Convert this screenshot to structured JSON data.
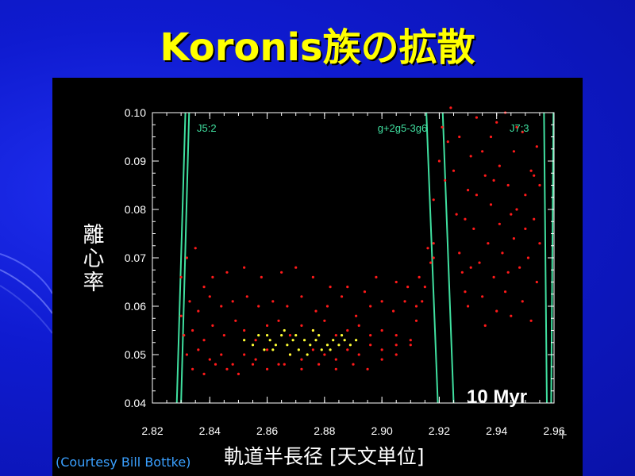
{
  "slide": {
    "title": "Koronis族の拡散",
    "credit": "(Courtesy Bill Bottke)",
    "corner_mark": "+"
  },
  "chart_data": {
    "type": "scatter",
    "title": "",
    "xlabel": "軌道半長径 [天文単位]",
    "ylabel": "離心率",
    "ylabel_chars": [
      "離",
      "心",
      "率"
    ],
    "xlim": [
      2.82,
      2.96
    ],
    "ylim": [
      0.04,
      0.1
    ],
    "x_ticks": [
      2.82,
      2.84,
      2.86,
      2.88,
      2.9,
      2.92,
      2.94,
      2.96
    ],
    "x_tick_labels": [
      "2.82",
      "2.84",
      "2.86",
      "2.88",
      "2.90",
      "2.92",
      "2.94",
      "2.96"
    ],
    "y_ticks": [
      0.04,
      0.05,
      0.06,
      0.07,
      0.08,
      0.09,
      0.1
    ],
    "y_tick_labels": [
      "0.04",
      "0.05",
      "0.06",
      "0.07",
      "0.08",
      "0.09",
      "0.10"
    ],
    "grid": false,
    "annotation": "10 Myr",
    "colors": {
      "background": "#000000",
      "axes": "#ffffff",
      "resonance": "#40e0a0",
      "scattered": "#ff1a1a",
      "initial": "#ffff33"
    },
    "resonances": [
      {
        "label": "J5:2",
        "lines": [
          {
            "a_top": 2.8315,
            "a_bottom": 2.8285
          },
          {
            "a_top": 2.8328,
            "a_bottom": 2.83
          }
        ]
      },
      {
        "label": "g+2g5-3g6",
        "lines": [
          {
            "a_top": 2.9155,
            "a_bottom": 2.9195
          },
          {
            "a_top": 2.9212,
            "a_bottom": 2.925
          }
        ]
      },
      {
        "label": "J7:3",
        "lines": [
          {
            "a_top": 2.9565,
            "a_bottom": 2.9575
          },
          {
            "a_top": 2.9598,
            "a_bottom": 2.959
          }
        ]
      }
    ],
    "series": [
      {
        "color": "red",
        "points": [
          [
            2.83,
            0.066
          ],
          [
            2.832,
            0.07
          ],
          [
            2.835,
            0.072
          ],
          [
            2.838,
            0.064
          ],
          [
            2.841,
            0.066
          ],
          [
            2.846,
            0.067
          ],
          [
            2.852,
            0.068
          ],
          [
            2.858,
            0.066
          ],
          [
            2.865,
            0.067
          ],
          [
            2.87,
            0.068
          ],
          [
            2.876,
            0.066
          ],
          [
            2.882,
            0.064
          ],
          [
            2.888,
            0.064
          ],
          [
            2.894,
            0.063
          ],
          [
            2.898,
            0.066
          ],
          [
            2.905,
            0.065
          ],
          [
            2.909,
            0.064
          ],
          [
            2.913,
            0.066
          ],
          [
            2.916,
            0.072
          ],
          [
            2.918,
            0.073
          ],
          [
            2.83,
            0.058
          ],
          [
            2.833,
            0.061
          ],
          [
            2.836,
            0.059
          ],
          [
            2.84,
            0.062
          ],
          [
            2.844,
            0.06
          ],
          [
            2.848,
            0.061
          ],
          [
            2.853,
            0.062
          ],
          [
            2.857,
            0.06
          ],
          [
            2.862,
            0.061
          ],
          [
            2.867,
            0.06
          ],
          [
            2.872,
            0.062
          ],
          [
            2.877,
            0.059
          ],
          [
            2.881,
            0.06
          ],
          [
            2.886,
            0.062
          ],
          [
            2.891,
            0.058
          ],
          [
            2.896,
            0.06
          ],
          [
            2.9,
            0.061
          ],
          [
            2.904,
            0.059
          ],
          [
            2.908,
            0.061
          ],
          [
            2.912,
            0.06
          ],
          [
            2.831,
            0.054
          ],
          [
            2.834,
            0.055
          ],
          [
            2.838,
            0.053
          ],
          [
            2.841,
            0.056
          ],
          [
            2.845,
            0.054
          ],
          [
            2.849,
            0.057
          ],
          [
            2.852,
            0.055
          ],
          [
            2.856,
            0.053
          ],
          [
            2.86,
            0.056
          ],
          [
            2.864,
            0.057
          ],
          [
            2.868,
            0.054
          ],
          [
            2.872,
            0.056
          ],
          [
            2.876,
            0.055
          ],
          [
            2.88,
            0.057
          ],
          [
            2.884,
            0.054
          ],
          [
            2.888,
            0.055
          ],
          [
            2.892,
            0.056
          ],
          [
            2.896,
            0.054
          ],
          [
            2.9,
            0.055
          ],
          [
            2.905,
            0.054
          ],
          [
            2.832,
            0.05
          ],
          [
            2.836,
            0.051
          ],
          [
            2.84,
            0.049
          ],
          [
            2.844,
            0.05
          ],
          [
            2.848,
            0.048
          ],
          [
            2.852,
            0.05
          ],
          [
            2.856,
            0.049
          ],
          [
            2.86,
            0.051
          ],
          [
            2.864,
            0.048
          ],
          [
            2.868,
            0.05
          ],
          [
            2.872,
            0.049
          ],
          [
            2.876,
            0.051
          ],
          [
            2.88,
            0.05
          ],
          [
            2.884,
            0.049
          ],
          [
            2.888,
            0.051
          ],
          [
            2.892,
            0.05
          ],
          [
            2.896,
            0.052
          ],
          [
            2.9,
            0.051
          ],
          [
            2.905,
            0.052
          ],
          [
            2.91,
            0.053
          ],
          [
            2.834,
            0.047
          ],
          [
            2.838,
            0.046
          ],
          [
            2.842,
            0.048
          ],
          [
            2.846,
            0.047
          ],
          [
            2.85,
            0.046
          ],
          [
            2.855,
            0.048
          ],
          [
            2.86,
            0.047
          ],
          [
            2.866,
            0.048
          ],
          [
            2.872,
            0.047
          ],
          [
            2.878,
            0.048
          ],
          [
            2.884,
            0.047
          ],
          [
            2.89,
            0.048
          ],
          [
            2.895,
            0.047
          ],
          [
            2.9,
            0.049
          ],
          [
            2.905,
            0.05
          ],
          [
            2.91,
            0.052
          ],
          [
            2.912,
            0.057
          ],
          [
            2.914,
            0.061
          ],
          [
            2.915,
            0.064
          ],
          [
            2.917,
            0.069
          ],
          [
            2.918,
            0.07
          ],
          [
            2.918,
            0.082
          ],
          [
            2.92,
            0.09
          ],
          [
            2.921,
            0.097
          ],
          [
            2.923,
            0.094
          ],
          [
            2.925,
            0.088
          ],
          [
            2.926,
            0.079
          ],
          [
            2.927,
            0.071
          ],
          [
            2.928,
            0.067
          ],
          [
            2.929,
            0.063
          ],
          [
            2.93,
            0.06
          ],
          [
            2.93,
            0.084
          ],
          [
            2.931,
            0.091
          ],
          [
            2.932,
            0.076
          ],
          [
            2.933,
            0.099
          ],
          [
            2.934,
            0.069
          ],
          [
            2.935,
            0.062
          ],
          [
            2.936,
            0.087
          ],
          [
            2.936,
            0.056
          ],
          [
            2.937,
            0.073
          ],
          [
            2.938,
            0.095
          ],
          [
            2.938,
            0.081
          ],
          [
            2.939,
            0.066
          ],
          [
            2.94,
            0.059
          ],
          [
            2.941,
            0.089
          ],
          [
            2.941,
            0.077
          ],
          [
            2.942,
            0.071
          ],
          [
            2.943,
            0.1
          ],
          [
            2.943,
            0.063
          ],
          [
            2.944,
            0.085
          ],
          [
            2.945,
            0.058
          ],
          [
            2.946,
            0.092
          ],
          [
            2.946,
            0.074
          ],
          [
            2.947,
            0.08
          ],
          [
            2.948,
            0.068
          ],
          [
            2.949,
            0.096
          ],
          [
            2.949,
            0.061
          ],
          [
            2.95,
            0.083
          ],
          [
            2.951,
            0.07
          ],
          [
            2.952,
            0.088
          ],
          [
            2.952,
            0.057
          ],
          [
            2.953,
            0.078
          ],
          [
            2.954,
            0.093
          ],
          [
            2.954,
            0.065
          ],
          [
            2.955,
            0.085
          ],
          [
            2.955,
            0.073
          ],
          [
            2.927,
            0.095
          ],
          [
            2.933,
            0.083
          ],
          [
            2.94,
            0.098
          ],
          [
            2.945,
            0.079
          ],
          [
            2.922,
            0.086
          ],
          [
            2.929,
            0.078
          ],
          [
            2.935,
            0.092
          ],
          [
            2.944,
            0.067
          ],
          [
            2.95,
            0.076
          ],
          [
            2.924,
            0.101
          ],
          [
            2.931,
            0.068
          ],
          [
            2.939,
            0.086
          ],
          [
            2.947,
            0.097
          ],
          [
            2.953,
            0.087
          ]
        ]
      },
      {
        "color": "yellow",
        "points": [
          [
            2.852,
            0.053
          ],
          [
            2.855,
            0.052
          ],
          [
            2.857,
            0.054
          ],
          [
            2.859,
            0.051
          ],
          [
            2.861,
            0.053
          ],
          [
            2.863,
            0.052
          ],
          [
            2.865,
            0.054
          ],
          [
            2.867,
            0.052
          ],
          [
            2.869,
            0.053
          ],
          [
            2.871,
            0.051
          ],
          [
            2.873,
            0.053
          ],
          [
            2.875,
            0.052
          ],
          [
            2.877,
            0.053
          ],
          [
            2.879,
            0.051
          ],
          [
            2.881,
            0.052
          ],
          [
            2.883,
            0.053
          ],
          [
            2.885,
            0.052
          ],
          [
            2.887,
            0.053
          ],
          [
            2.889,
            0.052
          ],
          [
            2.891,
            0.053
          ],
          [
            2.862,
            0.051
          ],
          [
            2.866,
            0.055
          ],
          [
            2.87,
            0.054
          ],
          [
            2.874,
            0.05
          ],
          [
            2.878,
            0.054
          ],
          [
            2.882,
            0.051
          ],
          [
            2.886,
            0.054
          ],
          [
            2.86,
            0.054
          ],
          [
            2.868,
            0.05
          ],
          [
            2.876,
            0.055
          ]
        ]
      }
    ]
  }
}
